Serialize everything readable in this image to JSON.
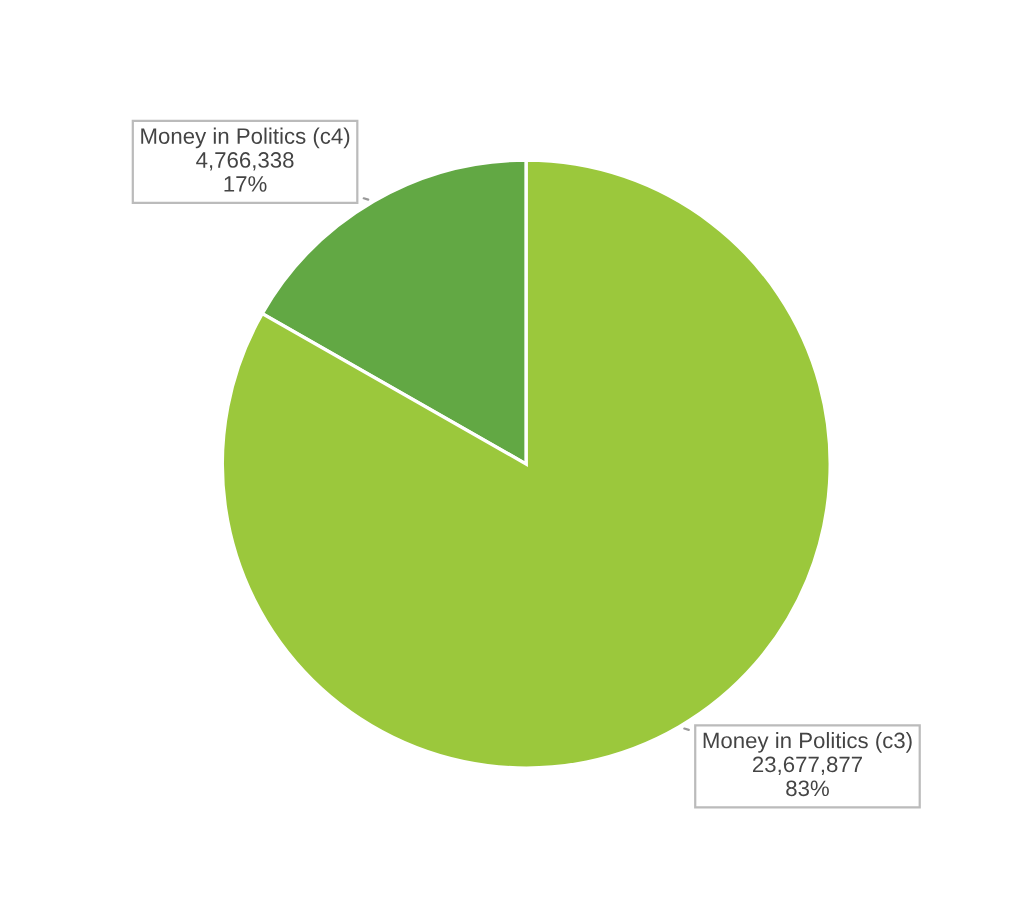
{
  "chart_data": {
    "type": "pie",
    "categories": [
      "Money in Politics (c4)",
      "Money in Politics (c3)"
    ],
    "values": [
      4766338,
      23677877
    ],
    "colors": [
      "#62a844",
      "#9bc83c"
    ],
    "value_labels": [
      "4,766,338\n17%",
      "23,677,877\n83%"
    ]
  }
}
